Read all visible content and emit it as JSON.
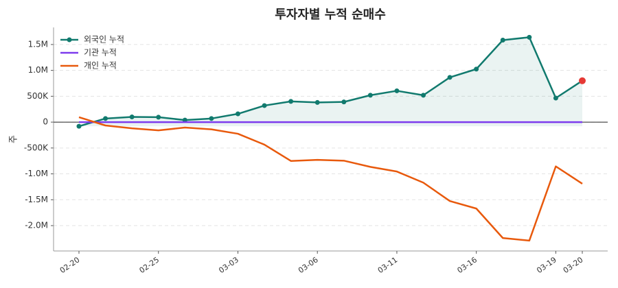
{
  "chart_data": {
    "type": "line",
    "title": "투자자별 누적 순매수",
    "ylabel": "주",
    "categories": [
      "02-20",
      null,
      null,
      "02-25",
      null,
      null,
      "03-03",
      null,
      null,
      "03-06",
      null,
      null,
      "03-11",
      null,
      null,
      "03-16",
      null,
      null,
      "03-19",
      "03-20"
    ],
    "series": [
      {
        "name": "외국인 누적",
        "color": "#117a6e",
        "marker": true,
        "fill": true,
        "values": [
          -80000,
          70000,
          100000,
          95000,
          40000,
          70000,
          160000,
          320000,
          400000,
          380000,
          390000,
          520000,
          605000,
          520000,
          865000,
          1025000,
          1585000,
          1640000,
          465000,
          800000
        ]
      },
      {
        "name": "기관 누적",
        "color": "#7c3aed",
        "values": [
          0,
          0,
          0,
          0,
          0,
          0,
          0,
          0,
          0,
          0,
          0,
          0,
          0,
          0,
          0,
          0,
          0,
          0,
          0,
          0
        ]
      },
      {
        "name": "개인 누적",
        "color": "#e8590c",
        "values": [
          95000,
          -65000,
          -120000,
          -160000,
          -105000,
          -140000,
          -225000,
          -435000,
          -750000,
          -730000,
          -745000,
          -865000,
          -955000,
          -1170000,
          -1525000,
          -1670000,
          -2240000,
          -2290000,
          -855000,
          -1190000
        ]
      }
    ],
    "highlight_color": "#e53935",
    "ylim": [
      -2490000,
      1830000
    ],
    "yticks": [
      {
        "value": -2000000,
        "label": "-2.0M"
      },
      {
        "value": -1500000,
        "label": "-1.5M"
      },
      {
        "value": -1000000,
        "label": "-1.0M"
      },
      {
        "value": -500000,
        "label": "-500K"
      },
      0,
      {
        "value": 500000,
        "label": "500K"
      },
      {
        "value": 1000000,
        "label": "1.0M"
      },
      {
        "value": 1500000,
        "label": "1.5M"
      }
    ],
    "grid": true,
    "legend": "upper-left"
  }
}
